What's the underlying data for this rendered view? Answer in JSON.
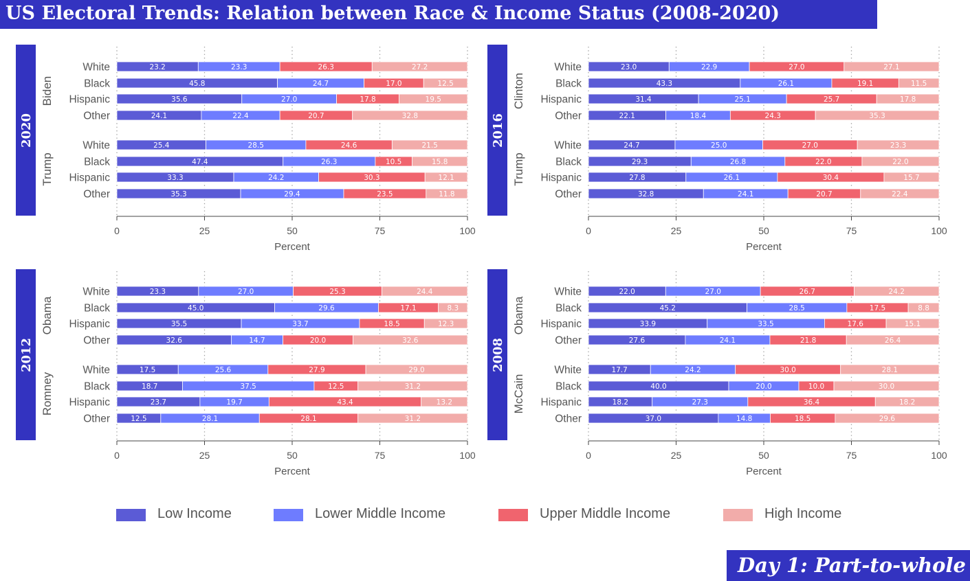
{
  "title": "US Electoral Trends: Relation between Race & Income Status (2008-2020)",
  "footer": "Day 1: Part-to-whole",
  "colors": {
    "low_income": "#5b5bd6",
    "lower_middle_income": "#6e7cff",
    "upper_middle_income": "#f0646e",
    "high_income": "#f2acaa",
    "banner": "#3333c0"
  },
  "legend": [
    {
      "label": "Low Income",
      "color": "#5b5bd6"
    },
    {
      "label": "Lower Middle Income",
      "color": "#6e7cff"
    },
    {
      "label": "Upper Middle Income",
      "color": "#f0646e"
    },
    {
      "label": "High Income",
      "color": "#f2acaa"
    }
  ],
  "chart_data": [
    {
      "type": "bar",
      "orientation": "horizontal",
      "stacked": true,
      "year": "2020",
      "xlabel": "Percent",
      "xlim": [
        0,
        100
      ],
      "xticks": [
        0,
        25,
        50,
        75,
        100
      ],
      "series_names": [
        "Low Income",
        "Lower Middle Income",
        "Upper Middle Income",
        "High Income"
      ],
      "groups": [
        {
          "candidate": "Biden",
          "rows": [
            {
              "race": "White",
              "values": [
                23.2,
                23.3,
                26.3,
                27.2
              ]
            },
            {
              "race": "Black",
              "values": [
                45.8,
                24.7,
                17.0,
                12.5
              ]
            },
            {
              "race": "Hispanic",
              "values": [
                35.6,
                27.0,
                17.8,
                19.5
              ]
            },
            {
              "race": "Other",
              "values": [
                24.1,
                22.4,
                20.7,
                32.8
              ]
            }
          ]
        },
        {
          "candidate": "Trump",
          "rows": [
            {
              "race": "White",
              "values": [
                25.4,
                28.5,
                24.6,
                21.5
              ]
            },
            {
              "race": "Black",
              "values": [
                47.4,
                26.3,
                10.5,
                15.8
              ]
            },
            {
              "race": "Hispanic",
              "values": [
                33.3,
                24.2,
                30.3,
                12.1
              ]
            },
            {
              "race": "Other",
              "values": [
                35.3,
                29.4,
                23.5,
                11.8
              ]
            }
          ]
        }
      ]
    },
    {
      "type": "bar",
      "orientation": "horizontal",
      "stacked": true,
      "year": "2016",
      "xlabel": "Percent",
      "xlim": [
        0,
        100
      ],
      "xticks": [
        0,
        25,
        50,
        75,
        100
      ],
      "series_names": [
        "Low Income",
        "Lower Middle Income",
        "Upper Middle Income",
        "High Income"
      ],
      "groups": [
        {
          "candidate": "Clinton",
          "rows": [
            {
              "race": "White",
              "values": [
                23.0,
                22.9,
                27.0,
                27.1
              ]
            },
            {
              "race": "Black",
              "values": [
                43.3,
                26.1,
                19.1,
                11.5
              ]
            },
            {
              "race": "Hispanic",
              "values": [
                31.4,
                25.1,
                25.7,
                17.8
              ]
            },
            {
              "race": "Other",
              "values": [
                22.1,
                18.4,
                24.3,
                35.3
              ]
            }
          ]
        },
        {
          "candidate": "Trump",
          "rows": [
            {
              "race": "White",
              "values": [
                24.7,
                25.0,
                27.0,
                23.3
              ]
            },
            {
              "race": "Black",
              "values": [
                29.3,
                26.8,
                22.0,
                22.0
              ]
            },
            {
              "race": "Hispanic",
              "values": [
                27.8,
                26.1,
                30.4,
                15.7
              ]
            },
            {
              "race": "Other",
              "values": [
                32.8,
                24.1,
                20.7,
                22.4
              ]
            }
          ]
        }
      ]
    },
    {
      "type": "bar",
      "orientation": "horizontal",
      "stacked": true,
      "year": "2012",
      "xlabel": "Percent",
      "xlim": [
        0,
        100
      ],
      "xticks": [
        0,
        25,
        50,
        75,
        100
      ],
      "series_names": [
        "Low Income",
        "Lower Middle Income",
        "Upper Middle Income",
        "High Income"
      ],
      "groups": [
        {
          "candidate": "Obama",
          "rows": [
            {
              "race": "White",
              "values": [
                23.3,
                27.0,
                25.3,
                24.4
              ]
            },
            {
              "race": "Black",
              "values": [
                45.0,
                29.6,
                17.1,
                8.3
              ]
            },
            {
              "race": "Hispanic",
              "values": [
                35.5,
                33.7,
                18.5,
                12.3
              ]
            },
            {
              "race": "Other",
              "values": [
                32.6,
                14.7,
                20.0,
                32.6
              ]
            }
          ]
        },
        {
          "candidate": "Romney",
          "rows": [
            {
              "race": "White",
              "values": [
                17.5,
                25.6,
                27.9,
                29.0
              ]
            },
            {
              "race": "Black",
              "values": [
                18.7,
                37.5,
                12.5,
                31.2
              ]
            },
            {
              "race": "Hispanic",
              "values": [
                23.7,
                19.7,
                43.4,
                13.2
              ]
            },
            {
              "race": "Other",
              "values": [
                12.5,
                28.1,
                28.1,
                31.2
              ]
            }
          ]
        }
      ]
    },
    {
      "type": "bar",
      "orientation": "horizontal",
      "stacked": true,
      "year": "2008",
      "xlabel": "Percent",
      "xlim": [
        0,
        100
      ],
      "xticks": [
        0,
        25,
        50,
        75,
        100
      ],
      "series_names": [
        "Low Income",
        "Lower Middle Income",
        "Upper Middle Income",
        "High Income"
      ],
      "groups": [
        {
          "candidate": "Obama",
          "rows": [
            {
              "race": "White",
              "values": [
                22.0,
                27.0,
                26.7,
                24.2
              ]
            },
            {
              "race": "Black",
              "values": [
                45.2,
                28.5,
                17.5,
                8.8
              ]
            },
            {
              "race": "Hispanic",
              "values": [
                33.9,
                33.5,
                17.6,
                15.1
              ]
            },
            {
              "race": "Other",
              "values": [
                27.6,
                24.1,
                21.8,
                26.4
              ]
            }
          ]
        },
        {
          "candidate": "McCain",
          "rows": [
            {
              "race": "White",
              "values": [
                17.7,
                24.2,
                30.0,
                28.1
              ]
            },
            {
              "race": "Black",
              "values": [
                40.0,
                20.0,
                10.0,
                30.0
              ]
            },
            {
              "race": "Hispanic",
              "values": [
                18.2,
                27.3,
                36.4,
                18.2
              ]
            },
            {
              "race": "Other",
              "values": [
                37.0,
                14.8,
                18.5,
                29.6
              ]
            }
          ]
        }
      ]
    }
  ]
}
